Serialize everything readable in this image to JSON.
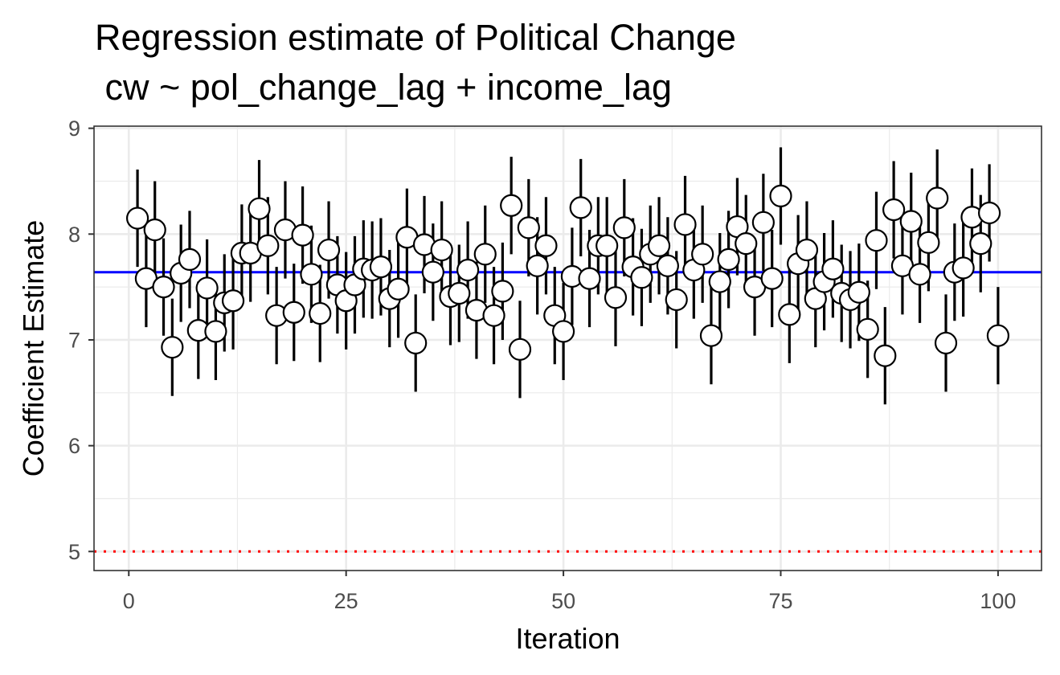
{
  "chart_data": {
    "type": "scatter",
    "title": "Regression estimate of Political Change",
    "subtitle": " cw ~ pol_change_lag + income_lag",
    "xlabel": "Iteration",
    "ylabel": "Coefficient Estimate",
    "xlim": [
      -4,
      105
    ],
    "ylim": [
      4.82,
      9.02
    ],
    "x_ticks": [
      0,
      25,
      50,
      75,
      100
    ],
    "x_tick_labels": [
      "0",
      "25",
      "50",
      "75",
      "100"
    ],
    "y_ticks": [
      5,
      6,
      7,
      8,
      9
    ],
    "y_tick_labels": [
      "5",
      "6",
      "7",
      "8",
      "9"
    ],
    "grid": true,
    "theme": "bw",
    "reference_lines": [
      {
        "y": 7.64,
        "color": "#0000ff",
        "style": "solid"
      },
      {
        "y": 5,
        "color": "#ff0000",
        "style": "dotted"
      }
    ],
    "error_half_width": 0.46,
    "series": [
      {
        "x": [
          1,
          2,
          3,
          4,
          5,
          6,
          7,
          8,
          9,
          10,
          11,
          12,
          13,
          14,
          15,
          16,
          17,
          18,
          19,
          20,
          21,
          22,
          23,
          24,
          25,
          26,
          27,
          28,
          29,
          30,
          31,
          32,
          33,
          34,
          35,
          36,
          37,
          38,
          39,
          40,
          41,
          42,
          43,
          44,
          45,
          46,
          47,
          48,
          49,
          50,
          51,
          52,
          53,
          54,
          55,
          56,
          57,
          58,
          59,
          60,
          61,
          62,
          63,
          64,
          65,
          66,
          67,
          68,
          69,
          70,
          71,
          72,
          73,
          74,
          75,
          76,
          77,
          78,
          79,
          80,
          81,
          82,
          83,
          84,
          85,
          86,
          87,
          88,
          89,
          90,
          91,
          92,
          93,
          94,
          95,
          96,
          97,
          98,
          99,
          100
        ],
        "y": [
          8.15,
          7.58,
          8.04,
          7.5,
          6.93,
          7.63,
          7.76,
          7.09,
          7.49,
          7.08,
          7.35,
          7.37,
          7.82,
          7.82,
          8.24,
          7.89,
          7.23,
          8.04,
          7.26,
          7.99,
          7.62,
          7.25,
          7.85,
          7.52,
          7.37,
          7.52,
          7.67,
          7.66,
          7.69,
          7.39,
          7.48,
          7.97,
          6.97,
          7.9,
          7.64,
          7.85,
          7.41,
          7.44,
          7.66,
          7.28,
          7.81,
          7.23,
          7.46,
          8.27,
          6.91,
          8.06,
          7.7,
          7.89,
          7.23,
          7.08,
          7.6,
          8.25,
          7.58,
          7.89,
          7.89,
          7.4,
          8.06,
          7.69,
          7.59,
          7.81,
          7.89,
          7.7,
          7.38,
          8.09,
          7.66,
          7.81,
          7.04,
          7.55,
          7.76,
          8.07,
          7.91,
          7.5,
          8.11,
          7.58,
          8.36,
          7.24,
          7.72,
          7.85,
          7.39,
          7.55,
          7.67,
          7.44,
          7.38,
          7.45,
          7.1,
          7.94,
          6.85,
          8.23,
          7.7,
          8.12,
          7.62,
          7.92,
          8.34,
          6.97,
          7.64,
          7.68,
          8.16,
          7.91,
          8.2,
          7.04
        ]
      }
    ]
  }
}
